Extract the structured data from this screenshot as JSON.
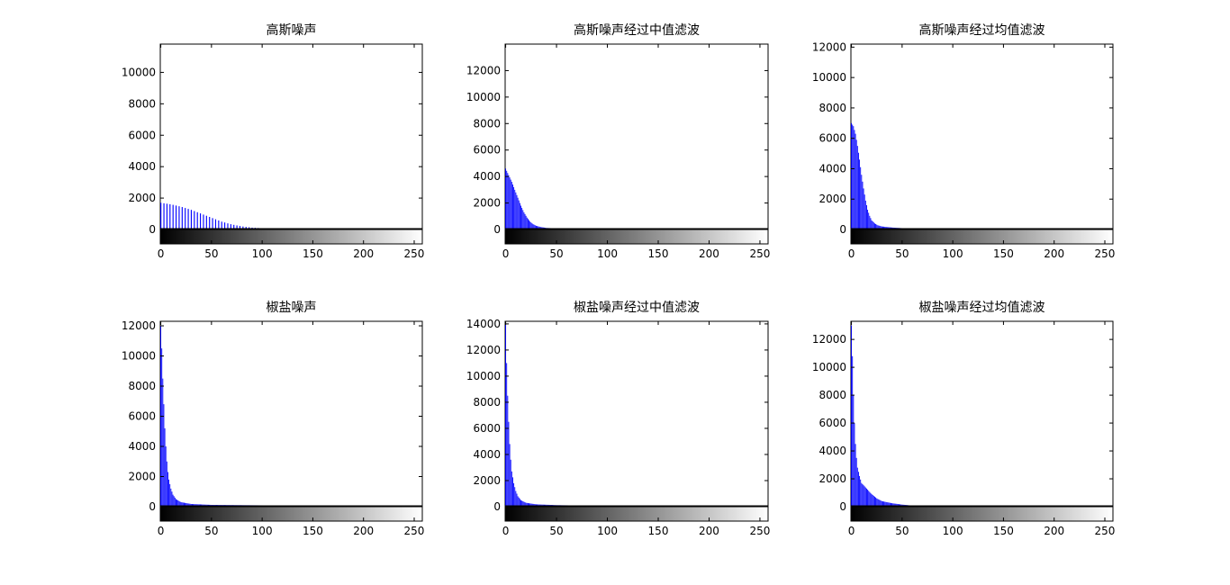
{
  "figure": {
    "background": "#ffffff",
    "bar_color": "#0000ff",
    "axis_color": "#000000",
    "layout": "2x3 grid of histograms with grayscale colorbar beneath each"
  },
  "chart_data": [
    {
      "type": "bar",
      "title": "高斯噪声",
      "xlim": [
        0,
        255
      ],
      "ylim": [
        -1000,
        11800
      ],
      "xticks": [
        0,
        50,
        100,
        150,
        200,
        250
      ],
      "yticks": [
        0,
        2000,
        4000,
        6000,
        8000,
        10000
      ],
      "xlabel": "",
      "ylabel": "",
      "bar_step": 3,
      "profile": [
        [
          0,
          1700
        ],
        [
          10,
          1600
        ],
        [
          20,
          1450
        ],
        [
          30,
          1250
        ],
        [
          40,
          1000
        ],
        [
          50,
          750
        ],
        [
          60,
          500
        ],
        [
          70,
          320
        ],
        [
          80,
          200
        ],
        [
          90,
          120
        ],
        [
          100,
          80
        ],
        [
          120,
          50
        ],
        [
          150,
          30
        ],
        [
          180,
          15
        ],
        [
          200,
          8
        ],
        [
          230,
          3
        ],
        [
          255,
          0
        ]
      ]
    },
    {
      "type": "bar",
      "title": "高斯噪声经过中值滤波",
      "xlim": [
        0,
        255
      ],
      "ylim": [
        -1000,
        14000
      ],
      "xticks": [
        0,
        50,
        100,
        150,
        200,
        250
      ],
      "yticks": [
        0,
        2000,
        4000,
        6000,
        8000,
        10000,
        12000
      ],
      "xlabel": "",
      "ylabel": "",
      "bar_step": 1,
      "profile": [
        [
          0,
          4600
        ],
        [
          3,
          4100
        ],
        [
          6,
          3600
        ],
        [
          9,
          3000
        ],
        [
          12,
          2400
        ],
        [
          15,
          1800
        ],
        [
          18,
          1300
        ],
        [
          21,
          900
        ],
        [
          24,
          600
        ],
        [
          27,
          400
        ],
        [
          30,
          280
        ],
        [
          35,
          180
        ],
        [
          40,
          120
        ],
        [
          50,
          80
        ],
        [
          60,
          60
        ],
        [
          80,
          50
        ],
        [
          100,
          30
        ],
        [
          120,
          20
        ],
        [
          150,
          10
        ],
        [
          200,
          0
        ],
        [
          255,
          0
        ]
      ]
    },
    {
      "type": "bar",
      "title": "高斯噪声经过均值滤波",
      "xlim": [
        0,
        255
      ],
      "ylim": [
        -1000,
        12200
      ],
      "xticks": [
        0,
        50,
        100,
        150,
        200,
        250
      ],
      "yticks": [
        0,
        2000,
        4000,
        6000,
        8000,
        10000,
        12000
      ],
      "xlabel": "",
      "ylabel": "",
      "bar_step": 1,
      "profile": [
        [
          0,
          7000
        ],
        [
          2,
          6800
        ],
        [
          4,
          6300
        ],
        [
          6,
          5500
        ],
        [
          8,
          4600
        ],
        [
          10,
          3600
        ],
        [
          12,
          2700
        ],
        [
          14,
          1900
        ],
        [
          16,
          1300
        ],
        [
          18,
          900
        ],
        [
          20,
          600
        ],
        [
          23,
          400
        ],
        [
          26,
          280
        ],
        [
          30,
          200
        ],
        [
          40,
          130
        ],
        [
          50,
          90
        ],
        [
          60,
          60
        ],
        [
          70,
          30
        ],
        [
          75,
          0
        ],
        [
          255,
          0
        ]
      ]
    },
    {
      "type": "bar",
      "title": "椒盐噪声",
      "xlim": [
        0,
        255
      ],
      "ylim": [
        -1000,
        12300
      ],
      "xticks": [
        0,
        50,
        100,
        150,
        200,
        250
      ],
      "yticks": [
        0,
        2000,
        4000,
        6000,
        8000,
        10000,
        12000
      ],
      "xlabel": "",
      "ylabel": "",
      "bar_step": 1,
      "profile": [
        [
          0,
          12000
        ],
        [
          1,
          10500
        ],
        [
          2,
          8500
        ],
        [
          3,
          6800
        ],
        [
          4,
          5200
        ],
        [
          5,
          4000
        ],
        [
          6,
          3000
        ],
        [
          7,
          2300
        ],
        [
          8,
          1800
        ],
        [
          10,
          1200
        ],
        [
          12,
          800
        ],
        [
          15,
          500
        ],
        [
          20,
          300
        ],
        [
          30,
          180
        ],
        [
          50,
          120
        ],
        [
          100,
          90
        ],
        [
          150,
          80
        ],
        [
          200,
          70
        ],
        [
          225,
          60
        ],
        [
          228,
          0
        ],
        [
          255,
          0
        ]
      ]
    },
    {
      "type": "bar",
      "title": "椒盐噪声经过中值滤波",
      "xlim": [
        0,
        255
      ],
      "ylim": [
        -1000,
        14200
      ],
      "xticks": [
        0,
        50,
        100,
        150,
        200,
        250
      ],
      "yticks": [
        0,
        2000,
        4000,
        6000,
        8000,
        10000,
        12000,
        14000
      ],
      "xlabel": "",
      "ylabel": "",
      "bar_step": 1,
      "profile": [
        [
          0,
          14000
        ],
        [
          1,
          11000
        ],
        [
          2,
          8500
        ],
        [
          3,
          6500
        ],
        [
          4,
          4800
        ],
        [
          5,
          3600
        ],
        [
          6,
          2700
        ],
        [
          8,
          1800
        ],
        [
          10,
          1200
        ],
        [
          12,
          800
        ],
        [
          15,
          500
        ],
        [
          20,
          300
        ],
        [
          30,
          180
        ],
        [
          50,
          120
        ],
        [
          80,
          80
        ],
        [
          100,
          60
        ],
        [
          130,
          40
        ],
        [
          160,
          20
        ],
        [
          200,
          0
        ],
        [
          255,
          0
        ]
      ]
    },
    {
      "type": "bar",
      "title": "椒盐噪声经过均值滤波",
      "xlim": [
        0,
        255
      ],
      "ylim": [
        -1000,
        13300
      ],
      "xticks": [
        0,
        50,
        100,
        150,
        200,
        250
      ],
      "yticks": [
        0,
        2000,
        4000,
        6000,
        8000,
        10000,
        12000
      ],
      "xlabel": "",
      "ylabel": "",
      "bar_step": 1,
      "profile": [
        [
          0,
          13000
        ],
        [
          1,
          10800
        ],
        [
          2,
          8000
        ],
        [
          3,
          6000
        ],
        [
          4,
          4500
        ],
        [
          5,
          3500
        ],
        [
          6,
          2800
        ],
        [
          8,
          2200
        ],
        [
          10,
          1700
        ],
        [
          15,
          1300
        ],
        [
          20,
          900
        ],
        [
          25,
          600
        ],
        [
          30,
          400
        ],
        [
          40,
          250
        ],
        [
          50,
          150
        ],
        [
          60,
          80
        ],
        [
          65,
          40
        ],
        [
          70,
          0
        ],
        [
          255,
          0
        ]
      ]
    }
  ]
}
